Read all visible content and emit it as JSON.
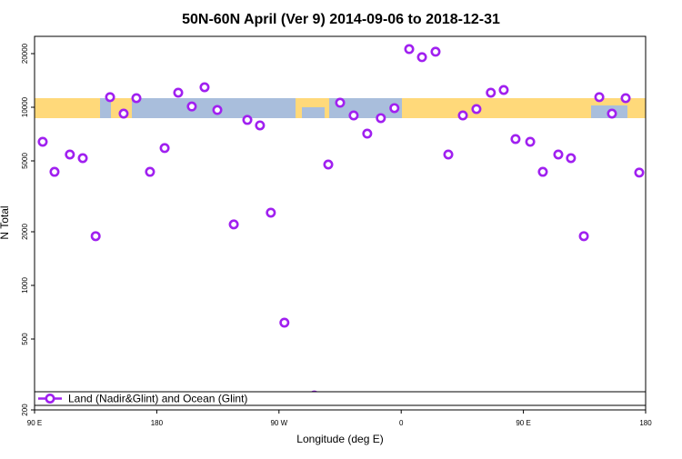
{
  "chart_data": {
    "type": "scatter",
    "title": "50N-60N April (Ver 9)   2014-09-06 to 2018-12-31",
    "xlabel": "Longitude (deg E)",
    "ylabel": "N Total",
    "x": [
      96,
      104.7,
      116,
      125.5,
      135,
      145.6,
      155.6,
      165,
      175,
      185.8,
      195.8,
      205.8,
      215.2,
      224.6,
      236.7,
      246.7,
      256,
      264,
      274,
      296,
      306.3,
      315,
      325,
      335,
      345,
      355,
      365.9,
      375.3,
      385.3,
      394.7,
      405.4,
      415.4,
      426,
      435.5,
      444.2,
      455,
      464.3,
      475.7,
      485,
      494.5,
      505.9,
      515.2,
      525.3,
      535.3
    ],
    "series": [
      {
        "name": "Land (Nadir&Glint) and Ocean (Glint)",
        "color": "#a020f0",
        "values": [
          6400,
          4340,
          5430,
          5180,
          1890,
          11400,
          9210,
          11250,
          4340,
          5900,
          12070,
          10100,
          12950,
          9650,
          2200,
          8490,
          7910,
          2560,
          618,
          241,
          4770,
          10600,
          9000,
          7110,
          8690,
          9890,
          21200,
          19100,
          20500,
          5430,
          9000,
          9770,
          12070,
          12500,
          6630,
          6400,
          4340,
          5430,
          5180,
          1890,
          11400,
          9210,
          11250,
          4300
        ]
      }
    ],
    "xlim": [
      90,
      540
    ],
    "xticks": [
      {
        "value": 90,
        "label": "90 E"
      },
      180,
      {
        "value": 270,
        "label": "90 W"
      },
      {
        "value": 360,
        "label": "0"
      },
      {
        "value": 450,
        "label": "90 E"
      },
      {
        "value": 540,
        "label": "180"
      }
    ],
    "ylim": [
      200,
      25000
    ],
    "yticks": [
      200,
      500,
      1000,
      2000,
      5000,
      10000,
      20000
    ],
    "ylog": true,
    "legend": "bottom left"
  }
}
